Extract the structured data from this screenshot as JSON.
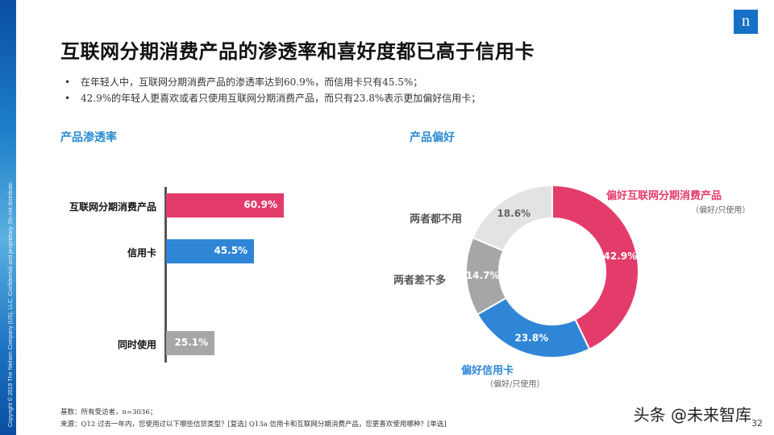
{
  "sidebar": {
    "copyright": "Copyright © 2019 The Nielsen Company (US), LLC. Confidential and proprietary. Do not distribute."
  },
  "logo": "n",
  "title": "互联网分期消费产品的渗透率和喜好度都已高于信用卡",
  "bullets": [
    "在年轻人中，互联网分期消费产品的渗透率达到60.9%，而信用卡只有45.5%；",
    "42.9%的年轻人更喜欢或者只使用互联网分期消费产品，而只有23.8%表示更加偏好信用卡；"
  ],
  "chart_data": [
    {
      "type": "bar",
      "title": "产品渗透率",
      "categories": [
        "互联网分期消费产品",
        "信用卡",
        "同时使用"
      ],
      "values": [
        60.9,
        45.5,
        25.1
      ],
      "value_labels": [
        "60.9%",
        "45.5%",
        "25.1%"
      ],
      "colors": [
        "#e33c6b",
        "#2f86d6",
        "#a6a6a8"
      ],
      "orientation": "horizontal"
    },
    {
      "type": "pie",
      "title": "产品偏好",
      "donut": true,
      "slices": [
        {
          "name": "偏好互联网分期消费产品",
          "sub": "（偏好/只使用）",
          "value": 42.9,
          "label": "42.9%",
          "color": "#e33c6b"
        },
        {
          "name": "偏好信用卡",
          "sub": "（偏好/只使用）",
          "value": 23.8,
          "label": "23.8%",
          "color": "#2f86d6"
        },
        {
          "name": "两者差不多",
          "sub": "",
          "value": 14.7,
          "label": "14.7%",
          "color": "#a6a6a8"
        },
        {
          "name": "两者都不用",
          "sub": "",
          "value": 18.6,
          "label": "18.6%",
          "color": "#e3e3e3"
        }
      ]
    }
  ],
  "footnotes": [
    "基数：所有受访者，n=3036；",
    "来源：Q12 过去一年内，您使用过以下哪些信贷类型？[复选] Q13a 信用卡和互联网分期消费产品，您更喜欢使用哪种？[单选]"
  ],
  "watermark": "头条 @未来智库",
  "page_number": "32"
}
